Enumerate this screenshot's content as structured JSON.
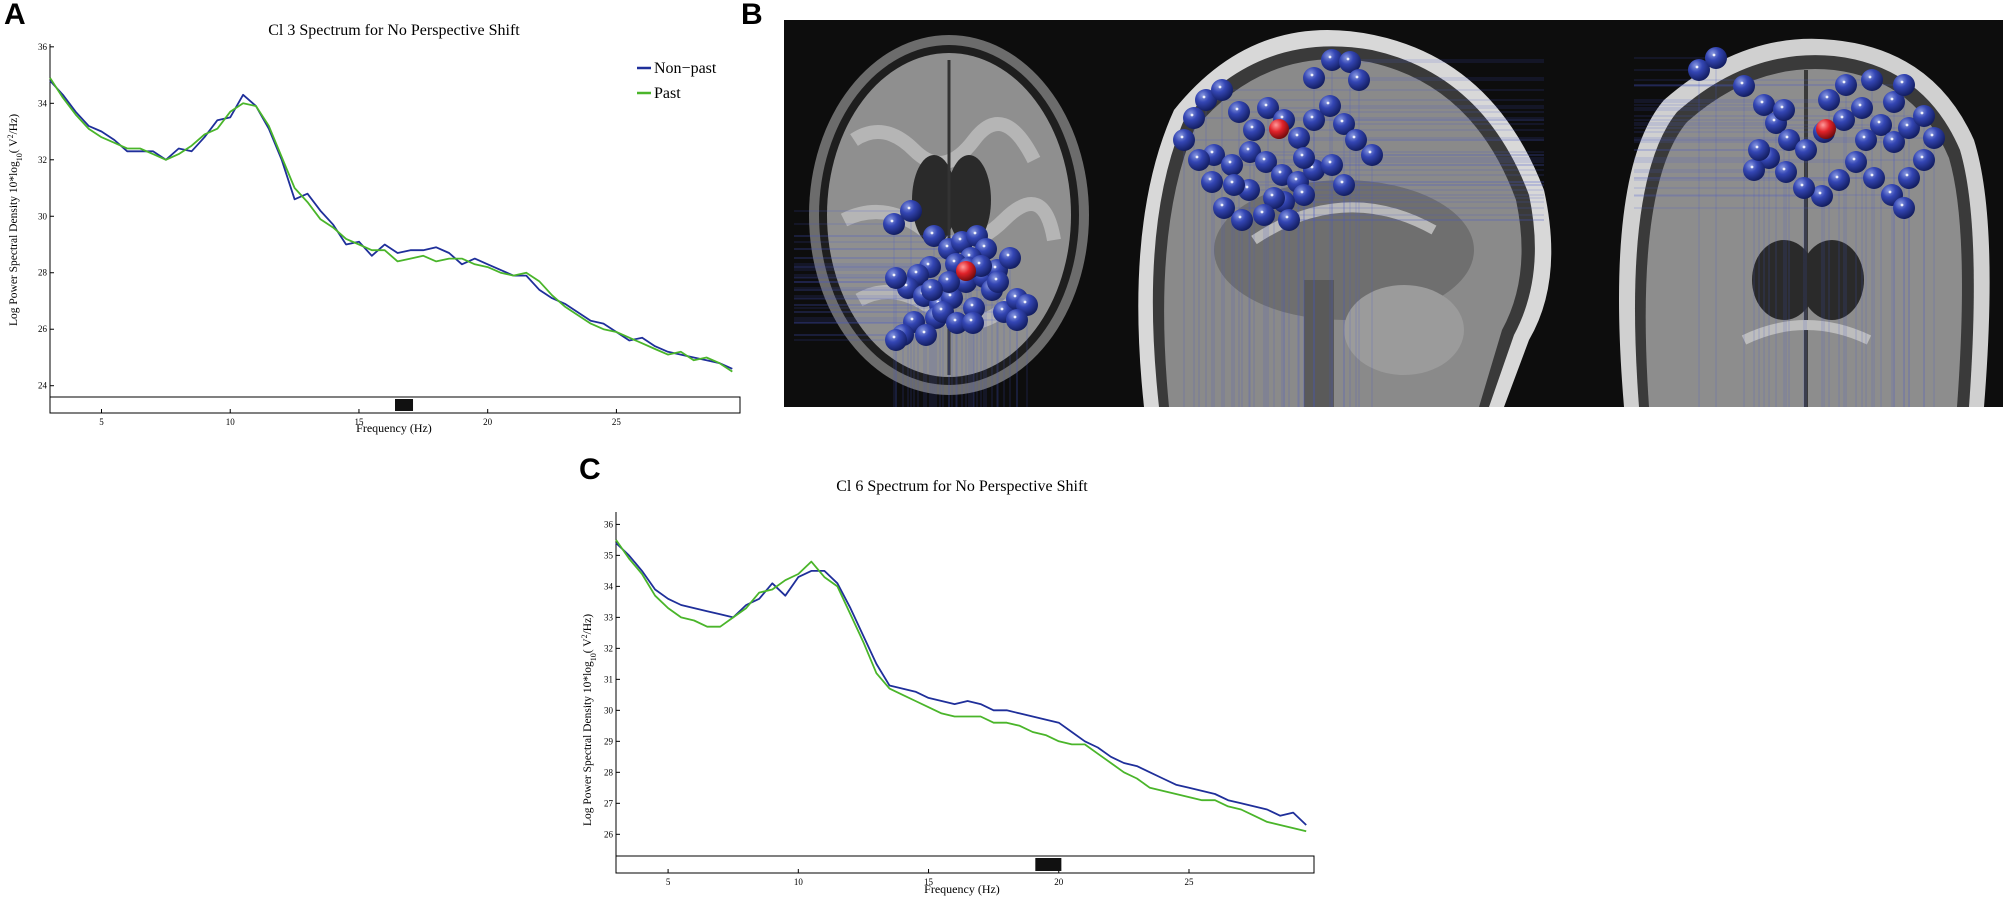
{
  "panels": {
    "a": "A",
    "b": "B",
    "c": "C"
  },
  "colors": {
    "non_past": "#1f2f9a",
    "past": "#4ab52a",
    "sig_bar": "#111111",
    "dipole_cluster": "#2b3d9e",
    "dipole_centroid": "#e0222a",
    "brain_bg": "#0d0d0d"
  },
  "chart_data": [
    {
      "type": "line",
      "title": "Cl 3 Spectrum for No Perspective Shift",
      "xlabel": "Frequency (Hz)",
      "ylabel_parts": {
        "main": "Log Power Spectral Density 10*log",
        "sub": "10",
        "open": "(  V",
        "sup": "2",
        "close": "/Hz)"
      },
      "xlim": [
        3,
        29.8
      ],
      "ylim": [
        23.6,
        36.1
      ],
      "xticks": [
        5,
        10,
        15,
        20,
        25
      ],
      "yticks": [
        24,
        26,
        28,
        30,
        32,
        34,
        36
      ],
      "grid": false,
      "legend_position": "top-right",
      "significance_band": [
        16.4,
        17.1
      ],
      "series": [
        {
          "name": "Non−past",
          "color": "#1f2f9a",
          "x": [
            3,
            3.5,
            4,
            4.5,
            5,
            5.5,
            6,
            6.5,
            7,
            7.5,
            8,
            8.5,
            9,
            9.5,
            10,
            10.5,
            11,
            11.5,
            12,
            12.5,
            13,
            13.5,
            14,
            14.5,
            15,
            15.5,
            16,
            16.5,
            17,
            17.5,
            18,
            18.5,
            19,
            19.5,
            20,
            20.5,
            21,
            21.5,
            22,
            22.5,
            23,
            23.5,
            24,
            24.5,
            25,
            25.5,
            26,
            26.5,
            27,
            27.5,
            28,
            28.5,
            29,
            29.5
          ],
          "y": [
            34.8,
            34.3,
            33.7,
            33.2,
            33.0,
            32.7,
            32.3,
            32.3,
            32.3,
            32.0,
            32.4,
            32.3,
            32.8,
            33.4,
            33.5,
            34.3,
            33.9,
            33.1,
            32.0,
            30.6,
            30.8,
            30.2,
            29.7,
            29.0,
            29.1,
            28.6,
            29.0,
            28.7,
            28.8,
            28.8,
            28.9,
            28.7,
            28.3,
            28.5,
            28.3,
            28.1,
            27.9,
            27.9,
            27.4,
            27.1,
            26.9,
            26.6,
            26.3,
            26.2,
            25.9,
            25.6,
            25.7,
            25.4,
            25.2,
            25.1,
            25.0,
            24.9,
            24.8,
            24.6
          ]
        },
        {
          "name": "Past",
          "color": "#4ab52a",
          "x": [
            3,
            3.5,
            4,
            4.5,
            5,
            5.5,
            6,
            6.5,
            7,
            7.5,
            8,
            8.5,
            9,
            9.5,
            10,
            10.5,
            11,
            11.5,
            12,
            12.5,
            13,
            13.5,
            14,
            14.5,
            15,
            15.5,
            16,
            16.5,
            17,
            17.5,
            18,
            18.5,
            19,
            19.5,
            20,
            20.5,
            21,
            21.5,
            22,
            22.5,
            23,
            23.5,
            24,
            24.5,
            25,
            25.5,
            26,
            26.5,
            27,
            27.5,
            28,
            28.5,
            29,
            29.5
          ],
          "y": [
            34.9,
            34.2,
            33.6,
            33.1,
            32.8,
            32.6,
            32.4,
            32.4,
            32.2,
            32.0,
            32.2,
            32.5,
            32.9,
            33.1,
            33.7,
            34.0,
            33.9,
            33.2,
            32.1,
            31.0,
            30.5,
            29.9,
            29.6,
            29.2,
            29.0,
            28.8,
            28.8,
            28.4,
            28.5,
            28.6,
            28.4,
            28.5,
            28.5,
            28.3,
            28.2,
            28.0,
            27.9,
            28.0,
            27.7,
            27.2,
            26.8,
            26.5,
            26.2,
            26.0,
            25.9,
            25.7,
            25.5,
            25.3,
            25.1,
            25.2,
            24.9,
            25.0,
            24.8,
            24.5
          ]
        }
      ]
    },
    {
      "type": "line",
      "title": "Cl 6 Spectrum for No Perspective Shift",
      "xlabel": "Frequency (Hz)",
      "ylabel_parts": {
        "main": "Log Power Spectral Density 10*log",
        "sub": "10",
        "open": "(  V",
        "sup": "2",
        "close": "/Hz)"
      },
      "xlim": [
        3,
        29.8
      ],
      "ylim": [
        25.3,
        36.4
      ],
      "xticks": [
        5,
        10,
        15,
        20,
        25
      ],
      "yticks": [
        26,
        27,
        28,
        29,
        30,
        31,
        32,
        33,
        34,
        35,
        36
      ],
      "grid": false,
      "legend_position": "none",
      "significance_band": [
        19.1,
        20.1
      ],
      "series": [
        {
          "name": "Non-past",
          "color": "#1f2f9a",
          "x": [
            3,
            3.5,
            4,
            4.5,
            5,
            5.5,
            6,
            6.5,
            7,
            7.5,
            8,
            8.5,
            9,
            9.5,
            10,
            10.5,
            11,
            11.5,
            12,
            12.5,
            13,
            13.5,
            14,
            14.5,
            15,
            15.5,
            16,
            16.5,
            17,
            17.5,
            18,
            18.5,
            19,
            19.5,
            20,
            20.5,
            21,
            21.5,
            22,
            22.5,
            23,
            23.5,
            24,
            24.5,
            25,
            25.5,
            26,
            26.5,
            27,
            27.5,
            28,
            28.5,
            29,
            29.5
          ],
          "y": [
            35.4,
            35.0,
            34.5,
            33.9,
            33.6,
            33.4,
            33.3,
            33.2,
            33.1,
            33.0,
            33.4,
            33.6,
            34.1,
            33.7,
            34.3,
            34.5,
            34.5,
            34.1,
            33.3,
            32.4,
            31.5,
            30.8,
            30.7,
            30.6,
            30.4,
            30.3,
            30.2,
            30.3,
            30.2,
            30.0,
            30.0,
            29.9,
            29.8,
            29.7,
            29.6,
            29.3,
            29.0,
            28.8,
            28.5,
            28.3,
            28.2,
            28.0,
            27.8,
            27.6,
            27.5,
            27.4,
            27.3,
            27.1,
            27.0,
            26.9,
            26.8,
            26.6,
            26.7,
            26.3
          ]
        },
        {
          "name": "Past",
          "color": "#4ab52a",
          "x": [
            3,
            3.5,
            4,
            4.5,
            5,
            5.5,
            6,
            6.5,
            7,
            7.5,
            8,
            8.5,
            9,
            9.5,
            10,
            10.5,
            11,
            11.5,
            12,
            12.5,
            13,
            13.5,
            14,
            14.5,
            15,
            15.5,
            16,
            16.5,
            17,
            17.5,
            18,
            18.5,
            19,
            19.5,
            20,
            20.5,
            21,
            21.5,
            22,
            22.5,
            23,
            23.5,
            24,
            24.5,
            25,
            25.5,
            26,
            26.5,
            27,
            27.5,
            28,
            28.5,
            29,
            29.5
          ],
          "y": [
            35.5,
            34.9,
            34.4,
            33.7,
            33.3,
            33.0,
            32.9,
            32.7,
            32.7,
            33.0,
            33.3,
            33.8,
            33.9,
            34.2,
            34.4,
            34.8,
            34.3,
            34.0,
            33.1,
            32.2,
            31.2,
            30.7,
            30.5,
            30.3,
            30.1,
            29.9,
            29.8,
            29.8,
            29.8,
            29.6,
            29.6,
            29.5,
            29.3,
            29.2,
            29.0,
            28.9,
            28.9,
            28.6,
            28.3,
            28.0,
            27.8,
            27.5,
            27.4,
            27.3,
            27.2,
            27.1,
            27.1,
            26.9,
            26.8,
            26.6,
            26.4,
            26.3,
            26.2,
            26.1
          ]
        }
      ]
    }
  ]
}
